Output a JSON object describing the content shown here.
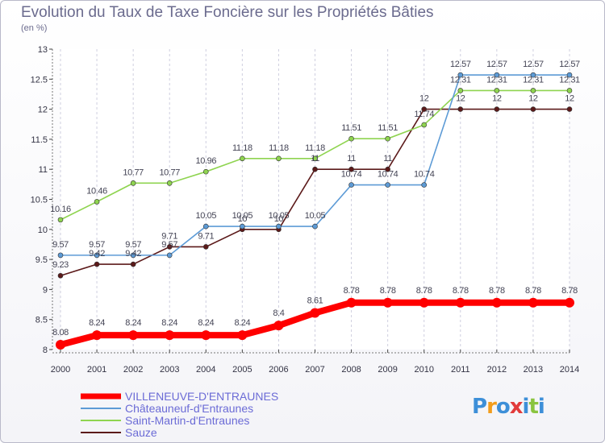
{
  "title": "Evolution du Taux de Taxe Foncière sur les Propriétés Bâties",
  "unit": "(en %)",
  "logo": "Proxiti",
  "chart_data": {
    "type": "line",
    "title": "Evolution du Taux de Taxe Foncière sur les Propriétés Bâties",
    "ylabel": "(en %)",
    "xlabel": "",
    "x": [
      2000,
      2001,
      2002,
      2003,
      2004,
      2005,
      2006,
      2007,
      2008,
      2009,
      2010,
      2011,
      2012,
      2013,
      2014
    ],
    "ylim": [
      8,
      13
    ],
    "yticks": [
      8,
      8.5,
      9,
      9.5,
      10,
      10.5,
      11,
      11.5,
      12,
      12.5,
      13
    ],
    "grid": "vertical dashed",
    "legend": "bottom-left",
    "series": [
      {
        "name": "Sauze",
        "color": "#5c1a1a",
        "values": [
          9.23,
          9.42,
          9.42,
          9.71,
          9.71,
          10,
          10,
          11,
          11,
          11,
          12,
          12,
          12,
          12,
          12
        ]
      },
      {
        "name": "Saint-Martin-d'Entraunes",
        "color": "#8fd450",
        "values": [
          10.16,
          10.46,
          10.77,
          10.77,
          10.96,
          11.18,
          11.18,
          11.18,
          11.51,
          11.51,
          11.74,
          12.31,
          12.31,
          12.31,
          12.31
        ]
      },
      {
        "name": "Châteauneuf-d'Entraunes",
        "color": "#5d9bd6",
        "values": [
          9.57,
          9.57,
          9.57,
          9.57,
          10.05,
          10.05,
          10.05,
          10.05,
          10.74,
          10.74,
          10.74,
          12.57,
          12.57,
          12.57,
          12.57
        ]
      },
      {
        "name": "VILLENEUVE-D'ENTRAUNES",
        "color": "#ff0000",
        "values": [
          8.08,
          8.24,
          8.24,
          8.24,
          8.24,
          8.24,
          8.4,
          8.61,
          8.78,
          8.78,
          8.78,
          8.78,
          8.78,
          8.78,
          8.78
        ]
      }
    ],
    "legend_order": [
      "VILLENEUVE-D'ENTRAUNES",
      "Châteauneuf-d'Entraunes",
      "Saint-Martin-d'Entraunes",
      "Sauze"
    ]
  }
}
